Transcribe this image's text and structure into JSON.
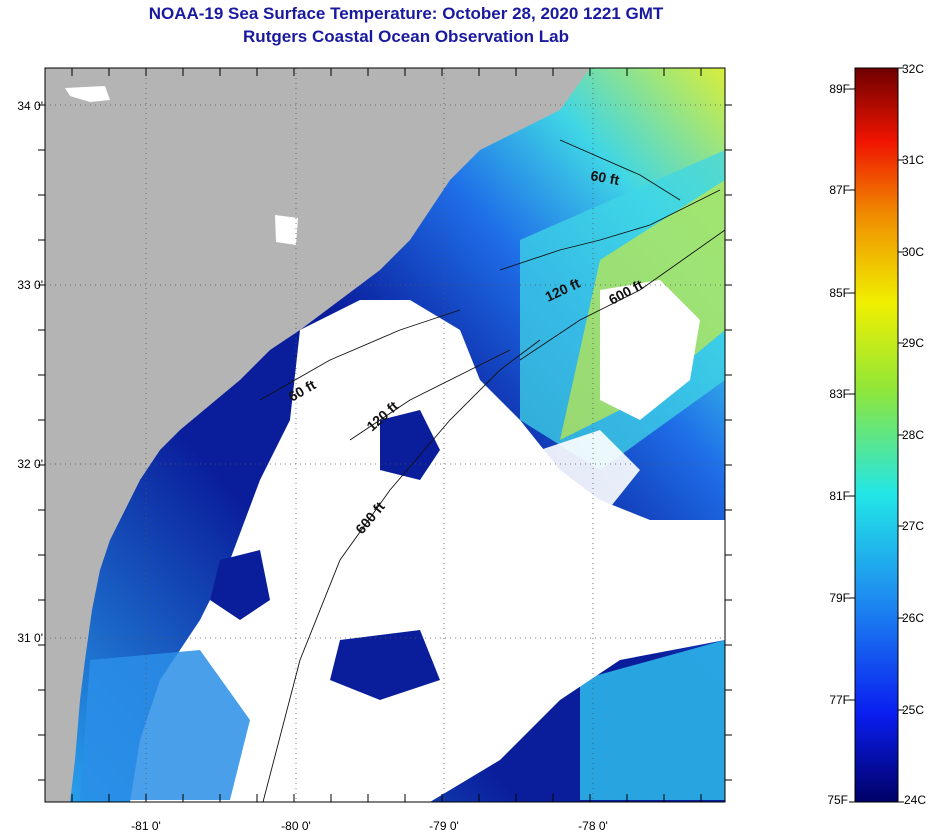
{
  "header": {
    "title": "NOAA-19 Sea Surface Temperature:  October 28, 2020 1221 GMT",
    "subtitle": "Rutgers Coastal Ocean Observation Lab"
  },
  "map": {
    "lat_labels": [
      "34 0'",
      "33 0'",
      "32 0'",
      "31 0'"
    ],
    "lon_labels": [
      "-81 0'",
      "-80 0'",
      "-79 0'",
      "-78 0'"
    ],
    "contour_labels": [
      "60 ft",
      "120 ft",
      "600 ft",
      "60 ft",
      "120 ft",
      "600 ft"
    ],
    "colors": {
      "land": "#b4b4b4",
      "cloud": "#ffffff",
      "water_cold": "#0a1e9c",
      "water_mid": "#1f6ee8",
      "water_warm": "#3fd6e6",
      "water_hot": "#d8ee3a"
    }
  },
  "colorbar": {
    "fahrenheit_labels": [
      "89F",
      "87F",
      "85F",
      "83F",
      "81F",
      "79F",
      "77F",
      "75F"
    ],
    "celsius_labels": [
      "32C",
      "31C",
      "30C",
      "29C",
      "28C",
      "27C",
      "26C",
      "25C",
      "24C"
    ],
    "range_c": [
      24,
      32
    ],
    "range_f": [
      75,
      89
    ]
  }
}
